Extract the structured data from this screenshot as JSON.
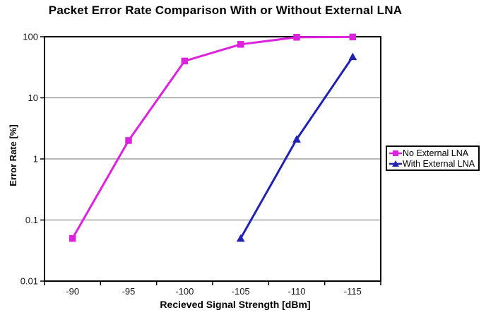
{
  "chart_data": {
    "type": "line",
    "title": "Packet Error Rate Comparison With or Without External LNA",
    "xlabel": "Recieved Signal Strength [dBm]",
    "ylabel": "Error Rate [%]",
    "x_axis": {
      "categories": [
        "-90",
        "-95",
        "-100",
        "-105",
        "-110",
        "-115"
      ],
      "type": "category"
    },
    "y_axis": {
      "scale": "log",
      "ticks": [
        "100",
        "10",
        "1",
        "0.1",
        "0.01"
      ],
      "range": [
        0.01,
        100
      ]
    },
    "grid": "horizontal-only",
    "legend_position": "right",
    "series": [
      {
        "name": "No External LNA",
        "color": "#DD22DD",
        "marker": "square",
        "values": [
          0.05,
          2,
          40,
          75,
          98,
          99
        ]
      },
      {
        "name": "With External LNA",
        "color": "#2222B2",
        "marker": "triangle",
        "values": [
          null,
          null,
          null,
          0.05,
          2.1,
          47
        ]
      }
    ]
  },
  "colors": {
    "grid": "#8C8C8C",
    "axis": "#000000",
    "background": "#FFFFFF",
    "text": "#1A1A1A"
  }
}
